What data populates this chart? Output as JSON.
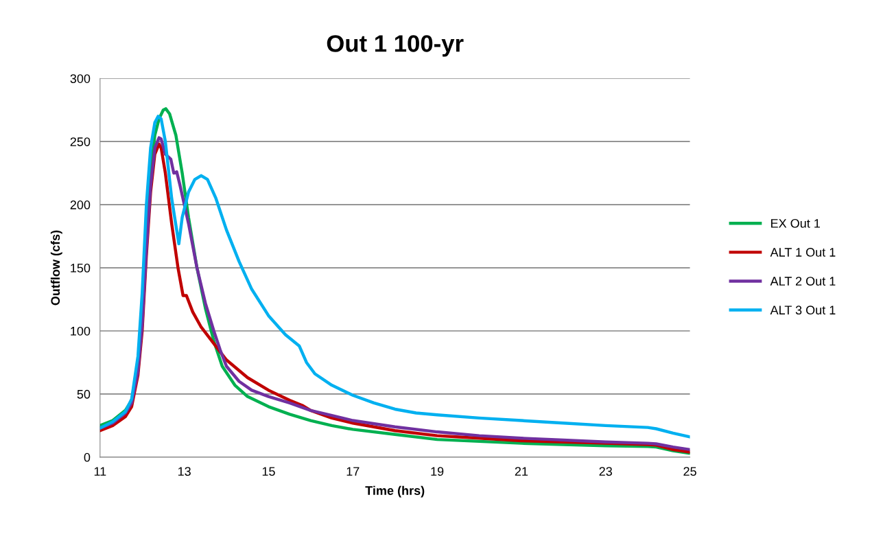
{
  "chart_data": {
    "type": "line",
    "title": "Out 1 100-yr",
    "xlabel": "Time (hrs)",
    "ylabel": "Outflow (cfs)",
    "xlim": [
      11,
      25
    ],
    "xticks": [
      11,
      13,
      15,
      17,
      19,
      21,
      23,
      25
    ],
    "ylim": [
      0,
      300
    ],
    "yticks": [
      0,
      50,
      100,
      150,
      200,
      250,
      300
    ],
    "grid": "y",
    "legend": "right",
    "marker": "none",
    "line_style": "solid",
    "series": [
      {
        "name": "EX Out 1",
        "color": "#00b050",
        "x": [
          11.0,
          11.3,
          11.6,
          11.75,
          11.9,
          12.0,
          12.1,
          12.2,
          12.3,
          12.4,
          12.5,
          12.56,
          12.65,
          12.8,
          12.95,
          13.1,
          13.3,
          13.5,
          13.7,
          13.9,
          14.2,
          14.5,
          15,
          15.5,
          16,
          16.5,
          17,
          18,
          19,
          20,
          21,
          22,
          23,
          24,
          24.2,
          24.6,
          25
        ],
        "values": [
          25,
          29,
          37,
          45,
          70,
          110,
          170,
          225,
          255,
          268,
          275,
          276,
          272,
          255,
          225,
          190,
          150,
          118,
          92,
          72,
          57,
          48,
          40,
          34,
          29,
          25,
          22,
          18,
          14,
          12.5,
          11,
          10,
          9,
          8.5,
          8,
          5,
          3
        ]
      },
      {
        "name": "ALT 1 Out 1",
        "color": "#c00000",
        "x": [
          11.0,
          11.3,
          11.6,
          11.75,
          11.9,
          12.0,
          12.1,
          12.2,
          12.3,
          12.4,
          12.45,
          12.55,
          12.7,
          12.85,
          12.97,
          13.05,
          13.2,
          13.4,
          13.7,
          14,
          14.5,
          15,
          15.5,
          15.8,
          16,
          16.5,
          17,
          18,
          19,
          20,
          21,
          22,
          23,
          24,
          24.2,
          24.6,
          25
        ],
        "values": [
          21,
          25,
          32,
          40,
          65,
          100,
          160,
          210,
          240,
          248,
          245,
          225,
          185,
          150,
          128,
          128,
          115,
          103,
          90,
          77,
          63,
          53,
          45,
          41,
          37,
          31,
          27,
          21,
          17,
          15,
          13,
          12,
          11,
          10,
          9.5,
          6,
          4
        ]
      },
      {
        "name": "ALT 2 Out 1",
        "color": "#7030a0",
        "x": [
          11.0,
          11.3,
          11.6,
          11.75,
          11.9,
          12.0,
          12.1,
          12.2,
          12.3,
          12.4,
          12.45,
          12.55,
          12.68,
          12.75,
          12.82,
          12.9,
          13.1,
          13.3,
          13.5,
          13.7,
          13.85,
          14.0,
          14.3,
          14.6,
          15,
          15.5,
          16,
          16.5,
          17,
          18,
          19,
          20,
          21,
          22,
          23,
          24,
          24.2,
          24.6,
          25
        ],
        "values": [
          23,
          27,
          35,
          43,
          68,
          105,
          165,
          215,
          245,
          253,
          252,
          240,
          236,
          225,
          226,
          215,
          185,
          150,
          122,
          100,
          85,
          72,
          60,
          53,
          48,
          43,
          37,
          33,
          29,
          24,
          20,
          17,
          15,
          13.5,
          12,
          11,
          10.5,
          8,
          6
        ]
      },
      {
        "name": "ALT 3 Out 1",
        "color": "#00b0f0",
        "x": [
          11.0,
          11.3,
          11.6,
          11.75,
          11.9,
          12.0,
          12.1,
          12.2,
          12.3,
          12.38,
          12.45,
          12.55,
          12.7,
          12.87,
          12.95,
          13.1,
          13.25,
          13.4,
          13.55,
          13.75,
          14.0,
          14.3,
          14.6,
          15,
          15.4,
          15.73,
          15.9,
          16.1,
          16.5,
          17,
          17.5,
          18,
          18.5,
          19,
          20,
          21,
          22,
          23,
          24,
          24.2,
          24.6,
          25
        ],
        "values": [
          23,
          28,
          36,
          46,
          80,
          130,
          200,
          245,
          265,
          270,
          268,
          250,
          205,
          169,
          190,
          210,
          220,
          223,
          220,
          205,
          180,
          155,
          133,
          112,
          97,
          88,
          75,
          66,
          57,
          49,
          43,
          38,
          35,
          33.5,
          31,
          29,
          27,
          25,
          23.5,
          22.5,
          19,
          16
        ]
      }
    ]
  }
}
